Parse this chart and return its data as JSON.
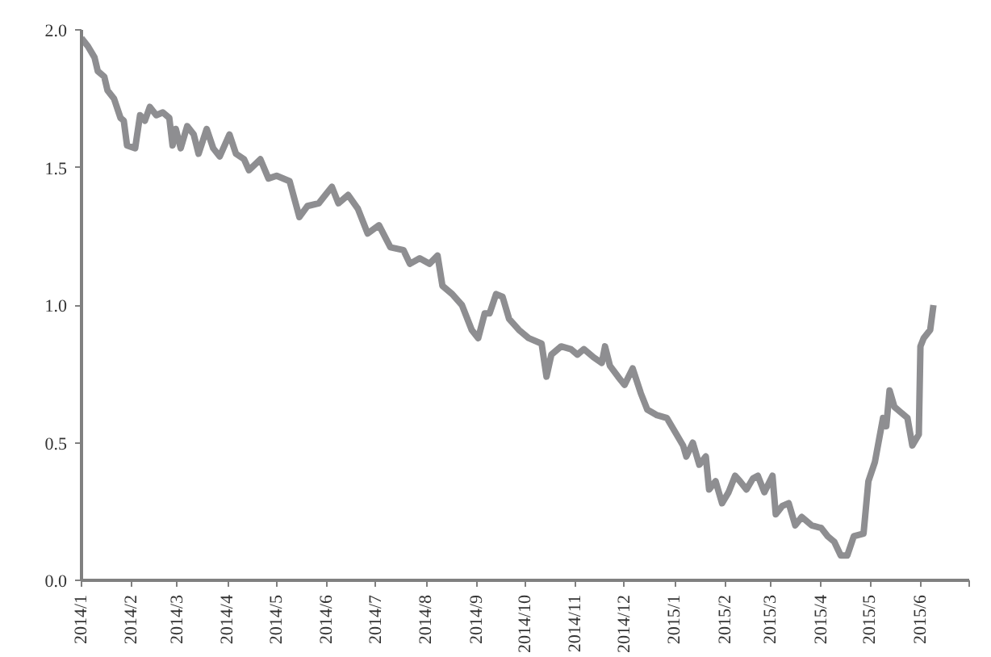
{
  "chart_data": {
    "type": "line",
    "grid": false,
    "line_style": "solid",
    "xlim": [
      "2014-01-01",
      "2015-07-01"
    ],
    "ylim": [
      0,
      2
    ],
    "xticks": [
      {
        "value": "2014-01-01",
        "label": "2014/1"
      },
      {
        "value": "2014-02-01",
        "label": "2014/2"
      },
      {
        "value": "2014-03-01",
        "label": "2014/3"
      },
      {
        "value": "2014-04-01",
        "label": "2014/4"
      },
      {
        "value": "2014-05-01",
        "label": "2014/5"
      },
      {
        "value": "2014-06-01",
        "label": "2014/6"
      },
      {
        "value": "2014-07-01",
        "label": "2014/7"
      },
      {
        "value": "2014-08-01",
        "label": "2014/8"
      },
      {
        "value": "2014-09-01",
        "label": "2014/9"
      },
      {
        "value": "2014-10-01",
        "label": "2014/10"
      },
      {
        "value": "2014-11-01",
        "label": "2014/11"
      },
      {
        "value": "2014-12-01",
        "label": "2014/12"
      },
      {
        "value": "2015-01-01",
        "label": "2015/1"
      },
      {
        "value": "2015-02-01",
        "label": "2015/2"
      },
      {
        "value": "2015-03-01",
        "label": "2015/3"
      },
      {
        "value": "2015-04-01",
        "label": "2015/4"
      },
      {
        "value": "2015-05-01",
        "label": "2015/5"
      },
      {
        "value": "2015-06-01",
        "label": "2015/6"
      },
      {
        "value": "2015-07-01",
        "label": null
      }
    ],
    "yticks": [
      {
        "value": 0,
        "label": "0.0"
      },
      {
        "value": 0.5,
        "label": "0.5"
      },
      {
        "value": 1,
        "label": "1.0"
      },
      {
        "value": 1.5,
        "label": "1.5"
      },
      {
        "value": 2,
        "label": "2.0"
      }
    ],
    "x": [
      "2014-01-01",
      "2014-01-05",
      "2014-01-09",
      "2014-01-11",
      "2014-01-15",
      "2014-01-17",
      "2014-01-21",
      "2014-01-25",
      "2014-01-27",
      "2014-01-29",
      "2014-02-03",
      "2014-02-06",
      "2014-02-09",
      "2014-02-12",
      "2014-02-16",
      "2014-02-20",
      "2014-02-24",
      "2014-02-26",
      "2014-02-28",
      "2014-03-03",
      "2014-03-07",
      "2014-03-11",
      "2014-03-14",
      "2014-03-19",
      "2014-03-23",
      "2014-03-27",
      "2014-04-02",
      "2014-04-06",
      "2014-04-11",
      "2014-04-14",
      "2014-04-21",
      "2014-04-26",
      "2014-05-01",
      "2014-05-09",
      "2014-05-15",
      "2014-05-20",
      "2014-05-27",
      "2014-05-31",
      "2014-06-04",
      "2014-06-08",
      "2014-06-14",
      "2014-06-20",
      "2014-06-26",
      "2014-07-03",
      "2014-07-10",
      "2014-07-18",
      "2014-07-22",
      "2014-07-28",
      "2014-08-03",
      "2014-08-08",
      "2014-08-11",
      "2014-08-17",
      "2014-08-23",
      "2014-08-29",
      "2014-09-02",
      "2014-09-06",
      "2014-09-09",
      "2014-09-13",
      "2014-09-17",
      "2014-09-21",
      "2014-09-27",
      "2014-10-03",
      "2014-10-11",
      "2014-10-14",
      "2014-10-17",
      "2014-10-23",
      "2014-10-29",
      "2014-11-02",
      "2014-11-06",
      "2014-11-12",
      "2014-11-17",
      "2014-11-19",
      "2014-11-22",
      "2014-11-27",
      "2014-12-01",
      "2014-12-06",
      "2014-12-11",
      "2014-12-15",
      "2014-12-21",
      "2014-12-27",
      "2015-01-02",
      "2015-01-06",
      "2015-01-08",
      "2015-01-12",
      "2015-01-16",
      "2015-01-20",
      "2015-01-22",
      "2015-01-26",
      "2015-01-30",
      "2015-02-03",
      "2015-02-07",
      "2015-02-10",
      "2015-02-14",
      "2015-02-18",
      "2015-02-21",
      "2015-02-25",
      "2015-03-02",
      "2015-03-04",
      "2015-03-08",
      "2015-03-12",
      "2015-03-16",
      "2015-03-20",
      "2015-03-26",
      "2015-04-01",
      "2015-04-05",
      "2015-04-09",
      "2015-04-13",
      "2015-04-17",
      "2015-04-21",
      "2015-04-27",
      "2015-04-30",
      "2015-05-04",
      "2015-05-09",
      "2015-05-11",
      "2015-05-13",
      "2015-05-16",
      "2015-05-20",
      "2015-05-24",
      "2015-05-27",
      "2015-05-31",
      "2015-06-01",
      "2015-06-03",
      "2015-06-07",
      "2015-06-09"
    ],
    "series": [
      {
        "color": "#8e8e91",
        "values": [
          1.97,
          1.94,
          1.9,
          1.85,
          1.83,
          1.78,
          1.75,
          1.68,
          1.67,
          1.58,
          1.57,
          1.69,
          1.67,
          1.72,
          1.69,
          1.7,
          1.68,
          1.58,
          1.64,
          1.57,
          1.65,
          1.62,
          1.55,
          1.64,
          1.57,
          1.54,
          1.62,
          1.55,
          1.53,
          1.49,
          1.53,
          1.46,
          1.47,
          1.45,
          1.32,
          1.36,
          1.37,
          1.4,
          1.43,
          1.37,
          1.4,
          1.35,
          1.26,
          1.29,
          1.21,
          1.2,
          1.15,
          1.17,
          1.15,
          1.18,
          1.07,
          1.04,
          1.0,
          0.91,
          0.88,
          0.97,
          0.97,
          1.04,
          1.03,
          0.95,
          0.91,
          0.88,
          0.86,
          0.74,
          0.82,
          0.85,
          0.84,
          0.82,
          0.84,
          0.81,
          0.79,
          0.85,
          0.78,
          0.74,
          0.71,
          0.77,
          0.68,
          0.62,
          0.6,
          0.59,
          0.53,
          0.49,
          0.45,
          0.5,
          0.42,
          0.45,
          0.33,
          0.36,
          0.28,
          0.32,
          0.38,
          0.36,
          0.33,
          0.37,
          0.38,
          0.32,
          0.38,
          0.24,
          0.27,
          0.28,
          0.2,
          0.23,
          0.2,
          0.19,
          0.16,
          0.14,
          0.09,
          0.09,
          0.16,
          0.17,
          0.36,
          0.43,
          0.59,
          0.56,
          0.69,
          0.63,
          0.61,
          0.59,
          0.49,
          0.53,
          0.85,
          0.88,
          0.91,
          1.0
        ]
      }
    ]
  }
}
